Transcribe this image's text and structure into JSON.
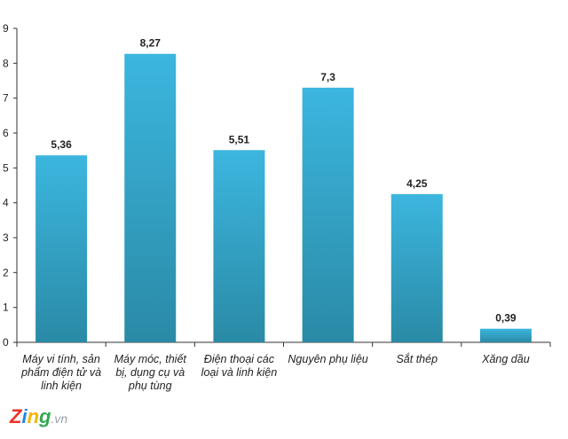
{
  "chart_data": {
    "type": "bar",
    "title": "",
    "xlabel": "",
    "ylabel": "",
    "categories": [
      "Máy vi tính,  sản phẩm điện tử và linh kiện",
      "Máy móc, thiết bị, dụng cụ và phụ tùng",
      "Điện thoại các loại và linh kiện",
      "Nguyên phụ liệu",
      "Sắt thép",
      "Xăng dầu"
    ],
    "category_lines": [
      [
        "Máy vi tính,  sản",
        "phẩm điện tử và",
        "linh kiện"
      ],
      [
        "Máy móc, thiết",
        "bị, dụng cụ và",
        "phụ tùng"
      ],
      [
        "Điện thoại các",
        "loại và linh kiện"
      ],
      [
        "Nguyên phụ liệu"
      ],
      [
        "Sắt thép"
      ],
      [
        "Xăng dầu"
      ]
    ],
    "values": [
      5.36,
      8.27,
      5.51,
      7.3,
      4.25,
      0.39
    ],
    "data_labels": [
      "5,36",
      "8,27",
      "5,51",
      "7,3",
      "4,25",
      "0,39"
    ],
    "ylim": [
      0,
      9
    ],
    "yticks": [
      "0",
      "1",
      "2",
      "3",
      "4",
      "5",
      "6",
      "7",
      "8",
      "9"
    ],
    "grid": false,
    "legend": "none",
    "colors": {
      "bar_top": "#3cb6df",
      "bar_bottom": "#2a8aa6",
      "axis": "#333333"
    }
  },
  "watermark": {
    "brand": "Zing",
    "suffix": ".vn",
    "colors": [
      "#e8332a",
      "#1e88e5",
      "#f4b400",
      "#34a853"
    ]
  }
}
